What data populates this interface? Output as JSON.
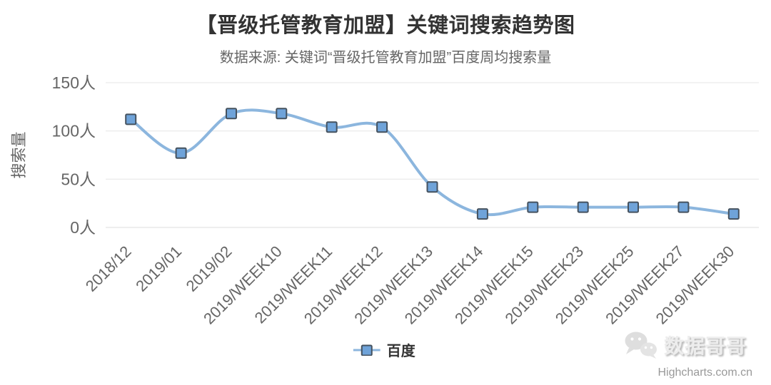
{
  "header": {
    "title": "【晋级托管教育加盟】关键词搜索趋势图",
    "subtitle": "数据来源: 关键词“晋级托管教育加盟”百度周均搜索量"
  },
  "legend": {
    "label": "百度"
  },
  "watermark": {
    "brand": "数据哥哥",
    "credit": "Highcharts.com.cn",
    "icon": "wechat-icon"
  },
  "chart_data": {
    "type": "line",
    "title": "【晋级托管教育加盟】关键词搜索趋势图",
    "subtitle": "数据来源: 关键词“晋级托管教育加盟”百度周均搜索量",
    "categories": [
      "2018/12",
      "2019/01",
      "2019/02",
      "2019/WEEK10",
      "2019/WEEK11",
      "2019/WEEK12",
      "2019/WEEK13",
      "2019/WEEK14",
      "2019/WEEK15",
      "2019/WEEK23",
      "2019/WEEK25",
      "2019/WEEK27",
      "2019/WEEK30"
    ],
    "series": [
      {
        "name": "百度",
        "values": [
          112,
          77,
          118,
          118,
          104,
          104,
          42,
          14,
          21,
          21,
          21,
          21,
          14
        ]
      }
    ],
    "xlabel": "",
    "ylabel": "搜索量",
    "ylim": [
      0,
      150
    ],
    "yticks": [
      0,
      50,
      100,
      150
    ],
    "y_unit": "人",
    "x_label_rotation": -45,
    "grid": "horizontal",
    "legend_position": "bottom-center",
    "marker": "square",
    "line_shape": "spline",
    "colors": {
      "line": "#8cb6de",
      "marker_fill": "#6fa3d9",
      "marker_stroke": "#45525f",
      "grid": "#e6e6e6",
      "axis_line": "#dcdcdc",
      "axis_text": "#666666",
      "title_text": "#333333"
    }
  }
}
